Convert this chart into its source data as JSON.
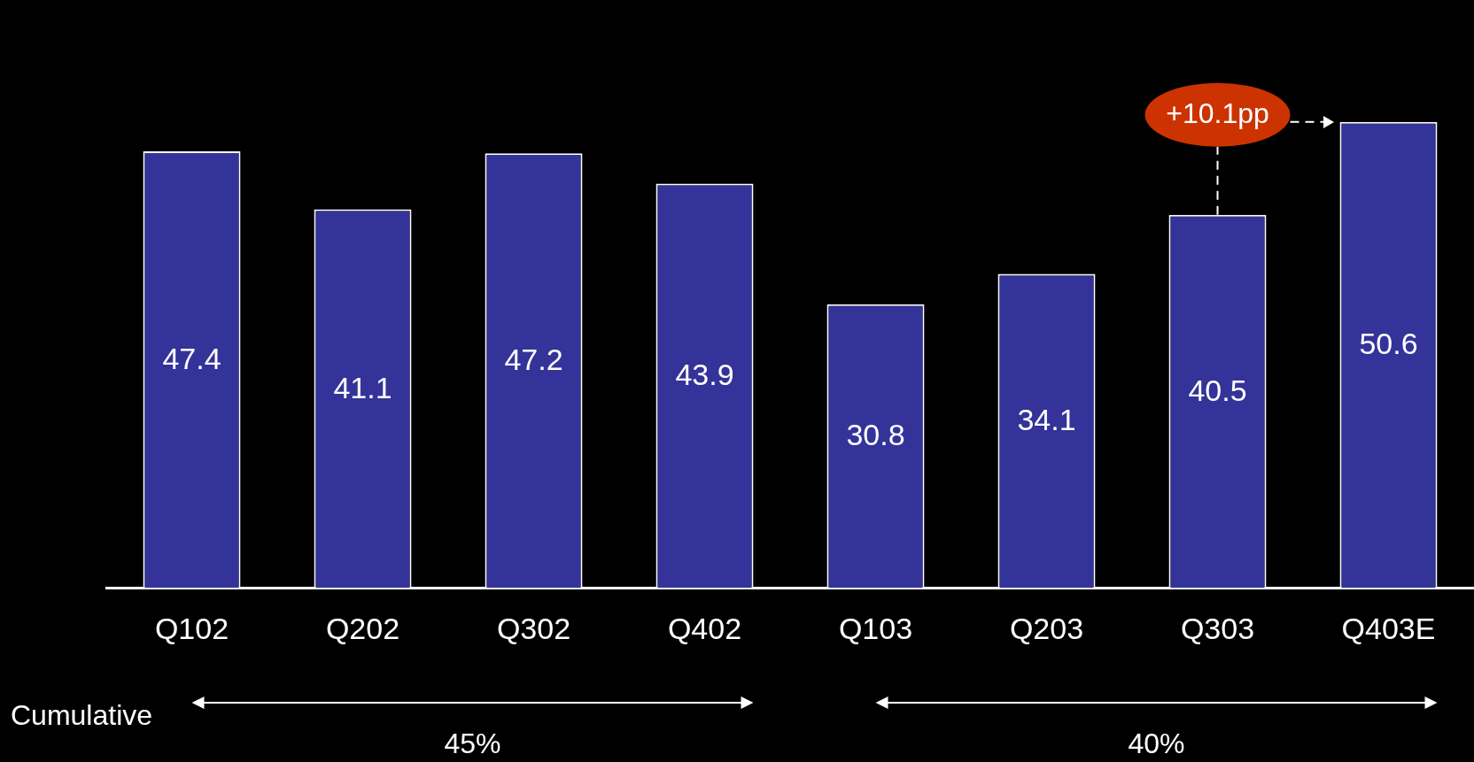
{
  "chart_data": {
    "type": "bar",
    "categories": [
      "Q102",
      "Q202",
      "Q302",
      "Q402",
      "Q103",
      "Q203",
      "Q303",
      "Q403E"
    ],
    "values": [
      47.4,
      41.1,
      47.2,
      43.9,
      30.8,
      34.1,
      40.5,
      50.6
    ],
    "color": "#333399",
    "data_labels": true,
    "tick_labels": "x",
    "legend": false,
    "annotations": [
      "+10.1pp",
      "Cumulative",
      "45%",
      "40%"
    ]
  }
}
